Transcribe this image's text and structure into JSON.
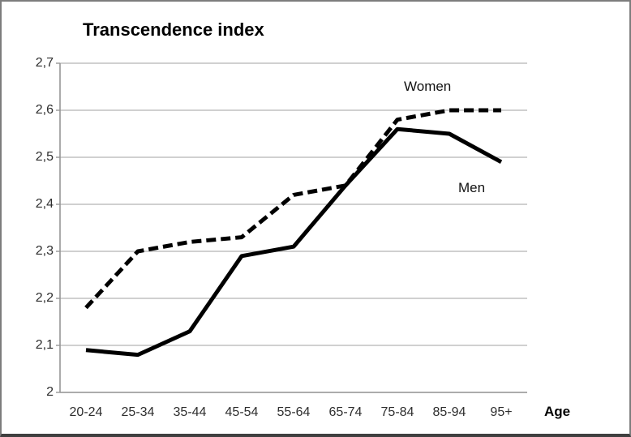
{
  "window": {
    "background": "#ffffff",
    "border_color": "#7d7d7d"
  },
  "chart_data": {
    "type": "line",
    "title": "Transcendence index",
    "x_axis_label": "Age",
    "categories": [
      "20-24",
      "25-34",
      "35-44",
      "45-54",
      "55-64",
      "65-74",
      "75-84",
      "85-94",
      "95+"
    ],
    "y_tick_labels": [
      "2,7",
      "2,6",
      "2,5",
      "2,4",
      "2,3",
      "2,2",
      "2,1",
      "2"
    ],
    "y_tick_values": [
      2.7,
      2.6,
      2.5,
      2.4,
      2.3,
      2.2,
      2.1,
      2.0
    ],
    "ylim": [
      2.0,
      2.7
    ],
    "grid": true,
    "legend_position": "inline-annotations",
    "series": [
      {
        "name": "Women",
        "line_style": "dashed",
        "color": "#000000",
        "values": [
          2.18,
          2.3,
          2.32,
          2.33,
          2.42,
          2.44,
          2.58,
          2.6,
          2.6
        ]
      },
      {
        "name": "Men",
        "line_style": "solid",
        "color": "#000000",
        "values": [
          2.09,
          2.08,
          2.13,
          2.29,
          2.31,
          2.44,
          2.56,
          2.55,
          2.49
        ]
      }
    ],
    "colors": {
      "gridline": "#b3b3b3",
      "axis": "#969696",
      "tick_text": "#2e2e2e",
      "title_text": "#000000"
    }
  }
}
